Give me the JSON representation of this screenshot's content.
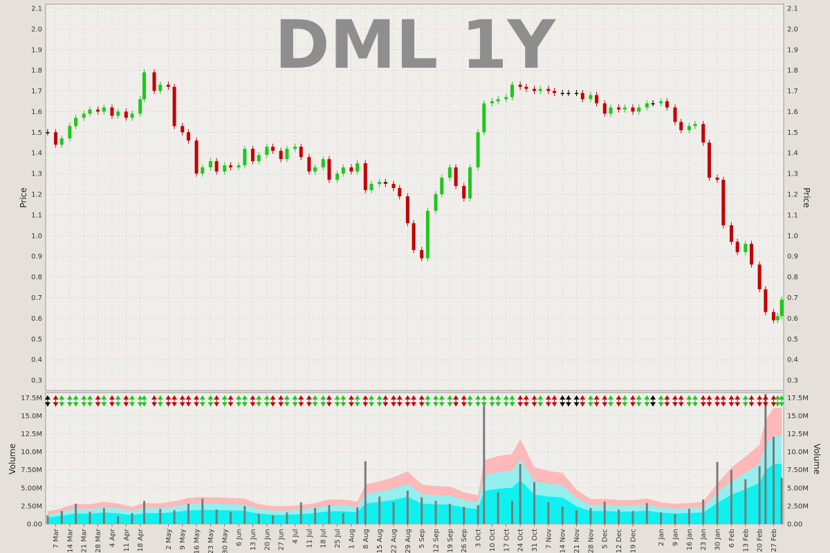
{
  "chart_data": {
    "type": "candlestick",
    "title": "DML 1Y",
    "colors": {
      "up": "#1ec81e",
      "down": "#c40000",
      "flat": "#000000",
      "plot_bg": "#f0eeea",
      "grid": "#c9c6c0",
      "volume_bar": "#7a7a7a",
      "volume_band_outer": "#ffb3b3",
      "volume_band_mid": "#88f5f5",
      "volume_band_inner": "#00f0f0"
    },
    "price_panel": {
      "ylabel": "Price",
      "ylim": [
        0.25,
        2.12
      ],
      "yticks": [
        "0.3",
        "0.4",
        "0.5",
        "0.6",
        "0.7",
        "0.8",
        "0.9",
        "1.0",
        "1.1",
        "1.2",
        "1.3",
        "1.4",
        "1.5",
        "1.6",
        "1.7",
        "1.8",
        "1.9",
        "2.0",
        "2.1"
      ],
      "close_series": [
        [
          "2022-03-03",
          1.5
        ],
        [
          "2022-03-07",
          1.44
        ],
        [
          "2022-03-10",
          1.47
        ],
        [
          "2022-03-14",
          1.53
        ],
        [
          "2022-03-17",
          1.57
        ],
        [
          "2022-03-21",
          1.59
        ],
        [
          "2022-03-24",
          1.61
        ],
        [
          "2022-03-28",
          1.6
        ],
        [
          "2022-03-31",
          1.62
        ],
        [
          "2022-04-04",
          1.58
        ],
        [
          "2022-04-07",
          1.6
        ],
        [
          "2022-04-11",
          1.57
        ],
        [
          "2022-04-14",
          1.59
        ],
        [
          "2022-04-18",
          1.66
        ],
        [
          "2022-04-20",
          1.79
        ],
        [
          "2022-04-25",
          1.7
        ],
        [
          "2022-04-28",
          1.73
        ],
        [
          "2022-05-02",
          1.72
        ],
        [
          "2022-05-05",
          1.53
        ],
        [
          "2022-05-09",
          1.5
        ],
        [
          "2022-05-12",
          1.46
        ],
        [
          "2022-05-16",
          1.3
        ],
        [
          "2022-05-19",
          1.33
        ],
        [
          "2022-05-23",
          1.36
        ],
        [
          "2022-05-26",
          1.31
        ],
        [
          "2022-05-30",
          1.34
        ],
        [
          "2022-06-02",
          1.33
        ],
        [
          "2022-06-06",
          1.34
        ],
        [
          "2022-06-09",
          1.42
        ],
        [
          "2022-06-13",
          1.36
        ],
        [
          "2022-06-16",
          1.39
        ],
        [
          "2022-06-20",
          1.43
        ],
        [
          "2022-06-23",
          1.41
        ],
        [
          "2022-06-27",
          1.37
        ],
        [
          "2022-06-30",
          1.42
        ],
        [
          "2022-07-04",
          1.43
        ],
        [
          "2022-07-07",
          1.38
        ],
        [
          "2022-07-11",
          1.31
        ],
        [
          "2022-07-14",
          1.33
        ],
        [
          "2022-07-18",
          1.37
        ],
        [
          "2022-07-21",
          1.27
        ],
        [
          "2022-07-25",
          1.3
        ],
        [
          "2022-07-28",
          1.33
        ],
        [
          "2022-08-01",
          1.31
        ],
        [
          "2022-08-04",
          1.35
        ],
        [
          "2022-08-08",
          1.22
        ],
        [
          "2022-08-11",
          1.25
        ],
        [
          "2022-08-15",
          1.26
        ],
        [
          "2022-08-18",
          1.25
        ],
        [
          "2022-08-22",
          1.23
        ],
        [
          "2022-08-25",
          1.19
        ],
        [
          "2022-08-29",
          1.06
        ],
        [
          "2022-09-01",
          0.93
        ],
        [
          "2022-09-05",
          0.89
        ],
        [
          "2022-09-08",
          1.12
        ],
        [
          "2022-09-12",
          1.2
        ],
        [
          "2022-09-15",
          1.28
        ],
        [
          "2022-09-19",
          1.33
        ],
        [
          "2022-09-22",
          1.24
        ],
        [
          "2022-09-26",
          1.18
        ],
        [
          "2022-09-29",
          1.33
        ],
        [
          "2022-10-03",
          1.5
        ],
        [
          "2022-10-06",
          1.64
        ],
        [
          "2022-10-10",
          1.65
        ],
        [
          "2022-10-13",
          1.66
        ],
        [
          "2022-10-17",
          1.67
        ],
        [
          "2022-10-20",
          1.73
        ],
        [
          "2022-10-24",
          1.72
        ],
        [
          "2022-10-27",
          1.71
        ],
        [
          "2022-10-31",
          1.7
        ],
        [
          "2022-11-03",
          1.71
        ],
        [
          "2022-11-07",
          1.7
        ],
        [
          "2022-11-10",
          1.69
        ],
        [
          "2022-11-14",
          1.69
        ],
        [
          "2022-11-17",
          1.69
        ],
        [
          "2022-11-21",
          1.69
        ],
        [
          "2022-11-24",
          1.66
        ],
        [
          "2022-11-28",
          1.68
        ],
        [
          "2022-12-01",
          1.64
        ],
        [
          "2022-12-05",
          1.59
        ],
        [
          "2022-12-08",
          1.62
        ],
        [
          "2022-12-12",
          1.61
        ],
        [
          "2022-12-15",
          1.62
        ],
        [
          "2022-12-19",
          1.6
        ],
        [
          "2022-12-22",
          1.62
        ],
        [
          "2022-12-26",
          1.64
        ],
        [
          "2022-12-29",
          1.64
        ],
        [
          "2023-01-02",
          1.65
        ],
        [
          "2023-01-05",
          1.62
        ],
        [
          "2023-01-09",
          1.55
        ],
        [
          "2023-01-12",
          1.51
        ],
        [
          "2023-01-16",
          1.53
        ],
        [
          "2023-01-19",
          1.54
        ],
        [
          "2023-01-23",
          1.45
        ],
        [
          "2023-01-26",
          1.28
        ],
        [
          "2023-01-30",
          1.27
        ],
        [
          "2023-02-02",
          1.05
        ],
        [
          "2023-02-06",
          0.97
        ],
        [
          "2023-02-09",
          0.92
        ],
        [
          "2023-02-13",
          0.96
        ],
        [
          "2023-02-16",
          0.86
        ],
        [
          "2023-02-20",
          0.74
        ],
        [
          "2023-02-23",
          0.63
        ],
        [
          "2023-02-27",
          0.59
        ],
        [
          "2023-03-01",
          0.61
        ],
        [
          "2023-03-03",
          0.69
        ]
      ]
    },
    "volume_panel": {
      "ylabel": "Volume",
      "ylim": [
        0,
        18200000
      ],
      "yticks": [
        "0.00",
        "2.50M",
        "5.00M",
        "7.50M",
        "10.0M",
        "12.5M",
        "15.0M",
        "17.5M"
      ],
      "volume_series": [
        [
          "2022-03-03",
          1.2
        ],
        [
          "2022-03-10",
          1.8
        ],
        [
          "2022-03-17",
          2.8
        ],
        [
          "2022-03-24",
          1.7
        ],
        [
          "2022-03-31",
          2.2
        ],
        [
          "2022-04-07",
          1.1
        ],
        [
          "2022-04-14",
          1.5
        ],
        [
          "2022-04-20",
          3.2
        ],
        [
          "2022-04-28",
          2.1
        ],
        [
          "2022-05-05",
          1.9
        ],
        [
          "2022-05-12",
          2.8
        ],
        [
          "2022-05-19",
          3.5
        ],
        [
          "2022-05-26",
          2.0
        ],
        [
          "2022-06-02",
          1.7
        ],
        [
          "2022-06-09",
          2.5
        ],
        [
          "2022-06-16",
          1.4
        ],
        [
          "2022-06-23",
          1.2
        ],
        [
          "2022-06-30",
          1.6
        ],
        [
          "2022-07-07",
          3.0
        ],
        [
          "2022-07-14",
          2.2
        ],
        [
          "2022-07-21",
          2.6
        ],
        [
          "2022-07-28",
          1.5
        ],
        [
          "2022-08-04",
          2.3
        ],
        [
          "2022-08-08",
          8.7
        ],
        [
          "2022-08-15",
          3.8
        ],
        [
          "2022-08-22",
          3.0
        ],
        [
          "2022-08-29",
          4.6
        ],
        [
          "2022-09-05",
          3.7
        ],
        [
          "2022-09-12",
          3.2
        ],
        [
          "2022-09-19",
          2.8
        ],
        [
          "2022-09-26",
          2.4
        ],
        [
          "2022-10-03",
          2.6
        ],
        [
          "2022-10-06",
          16.6
        ],
        [
          "2022-10-13",
          4.4
        ],
        [
          "2022-10-20",
          3.2
        ],
        [
          "2022-10-24",
          8.3
        ],
        [
          "2022-10-31",
          5.8
        ],
        [
          "2022-11-07",
          3.0
        ],
        [
          "2022-11-14",
          2.4
        ],
        [
          "2022-11-21",
          1.9
        ],
        [
          "2022-11-28",
          2.2
        ],
        [
          "2022-12-05",
          3.1
        ],
        [
          "2022-12-12",
          2.0
        ],
        [
          "2022-12-19",
          1.8
        ],
        [
          "2022-12-26",
          2.9
        ],
        [
          "2023-01-02",
          1.6
        ],
        [
          "2023-01-09",
          1.4
        ],
        [
          "2023-01-16",
          2.1
        ],
        [
          "2023-01-23",
          3.4
        ],
        [
          "2023-01-30",
          8.6
        ],
        [
          "2023-02-06",
          7.5
        ],
        [
          "2023-02-13",
          6.2
        ],
        [
          "2023-02-20",
          8.0
        ],
        [
          "2023-02-23",
          18.0
        ],
        [
          "2023-02-27",
          12.1
        ],
        [
          "2023-03-03",
          6.4
        ]
      ],
      "volume_unit": "M"
    },
    "xaxis": {
      "ticks": [
        "7 Mar",
        "14 Mar",
        "21 Mar",
        "28 Mar",
        "4 Apr",
        "11 Apr",
        "18 Apr",
        "2 May",
        "9 May",
        "16 May",
        "23 May",
        "30 May",
        "6 Jun",
        "13 Jun",
        "20 Jun",
        "27 Jun",
        "4 Jul",
        "11 Jul",
        "18 Jul",
        "25 Jul",
        "1 Aug",
        "8 Aug",
        "15 Aug",
        "22 Aug",
        "29 Aug",
        "5 Sep",
        "12 Sep",
        "19 Sep",
        "26 Sep",
        "3 Oct",
        "10 Oct",
        "17 Oct",
        "24 Oct",
        "31 Oct",
        "7 Nov",
        "14 Nov",
        "21 Nov",
        "28 Nov",
        "5 Dec",
        "12 Dec",
        "19 Dec",
        "2 Jan",
        "9 Jan",
        "16 Jan",
        "23 Jan",
        "30 Jan",
        "6 Feb",
        "13 Feb",
        "20 Feb",
        "27 Feb"
      ],
      "tick_dates": [
        "2022-03-07",
        "2022-03-14",
        "2022-03-21",
        "2022-03-28",
        "2022-04-04",
        "2022-04-11",
        "2022-04-18",
        "2022-05-02",
        "2022-05-09",
        "2022-05-16",
        "2022-05-23",
        "2022-05-30",
        "2022-06-06",
        "2022-06-13",
        "2022-06-20",
        "2022-06-27",
        "2022-07-04",
        "2022-07-11",
        "2022-07-18",
        "2022-07-25",
        "2022-08-01",
        "2022-08-08",
        "2022-08-15",
        "2022-08-22",
        "2022-08-29",
        "2022-09-05",
        "2022-09-12",
        "2022-09-19",
        "2022-09-26",
        "2022-10-03",
        "2022-10-10",
        "2022-10-17",
        "2022-10-24",
        "2022-10-31",
        "2022-11-07",
        "2022-11-14",
        "2022-11-21",
        "2022-11-28",
        "2022-12-05",
        "2022-12-12",
        "2022-12-19",
        "2023-01-02",
        "2023-01-09",
        "2023-01-16",
        "2023-01-23",
        "2023-01-30",
        "2023-02-06",
        "2023-02-13",
        "2023-02-20",
        "2023-02-27"
      ],
      "range": [
        "2022-03-02",
        "2023-03-04"
      ]
    },
    "grid": true
  }
}
